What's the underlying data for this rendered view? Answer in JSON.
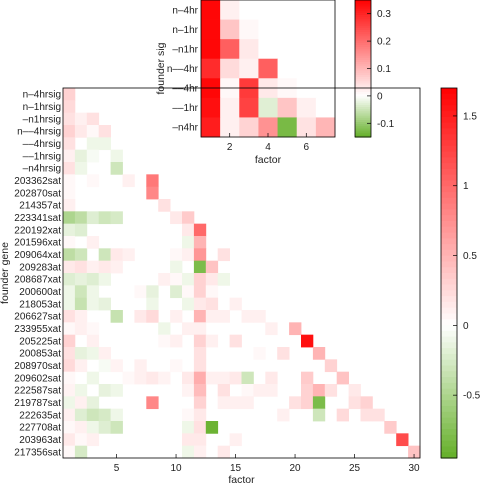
{
  "chart_data": [
    {
      "type": "heatmap",
      "title": "",
      "xlabel": "factor",
      "ylabel": "founder sig",
      "x_ticks": [
        2,
        4,
        6
      ],
      "rows": [
        "n–4hr",
        "n–1hr",
        "–n1hr",
        "n––4hr",
        "––4hr",
        "––1hr",
        "–n4hr"
      ],
      "matrix": [
        [
          0.34,
          0.02,
          0,
          0,
          0,
          0,
          0
        ],
        [
          0.34,
          0.08,
          0.01,
          0,
          0,
          0,
          0
        ],
        [
          0.34,
          0.22,
          0.03,
          0,
          0,
          0,
          0
        ],
        [
          0.29,
          0.05,
          0.02,
          0.22,
          0,
          0,
          0
        ],
        [
          0.34,
          0.01,
          0.27,
          0.03,
          0.01,
          0,
          0
        ],
        [
          0.33,
          0.02,
          0.26,
          -0.03,
          0.08,
          0.02,
          0
        ],
        [
          0.31,
          0.02,
          0.06,
          0.15,
          -0.13,
          0.04,
          0.1
        ]
      ],
      "colorbar": {
        "ticks": [
          0.3,
          0.2,
          0.1,
          0,
          -0.1
        ],
        "min": -0.15,
        "max": 0.35
      }
    },
    {
      "type": "heatmap",
      "title": "",
      "xlabel": "factor",
      "ylabel": "founder gene",
      "x_ticks": [
        5,
        10,
        15,
        20,
        25,
        30
      ],
      "rows": [
        "n–4hrsig",
        "n–1hrsig",
        "–n1hrsig",
        "n––4hrsig",
        "––4hrsig",
        "––1hrsig",
        "–n4hrsig",
        "203362sat",
        "202870sat",
        "214357at",
        "223341sat",
        "220192xat",
        "201596xat",
        "209064xat",
        "209283at",
        "208687xat",
        "200600at",
        "218053at",
        "206627sat",
        "233955xat",
        "205225at",
        "200853at",
        "208970sat",
        "209602sat",
        "222587sat",
        "219787sat",
        "222635at",
        "227708at",
        "203963at",
        "217356sat"
      ],
      "cells": [
        [
          1,
          1,
          0.3
        ],
        [
          1,
          2,
          0.25
        ],
        [
          1,
          3,
          0.2
        ],
        [
          1,
          4,
          0.3
        ],
        [
          1,
          5,
          0.2
        ],
        [
          1,
          6,
          0.1
        ],
        [
          1,
          7,
          0.2
        ],
        [
          1,
          8,
          0.05
        ],
        [
          1,
          9,
          0.05
        ],
        [
          1,
          10,
          0.1
        ],
        [
          1,
          11,
          -0.5
        ],
        [
          1,
          12,
          -0.15
        ],
        [
          1,
          13,
          0.05
        ],
        [
          1,
          14,
          -0.4
        ],
        [
          1,
          15,
          0.15
        ],
        [
          1,
          16,
          -0.2
        ],
        [
          1,
          17,
          -0.1
        ],
        [
          1,
          18,
          -0.1
        ],
        [
          1,
          19,
          0.2
        ],
        [
          1,
          20,
          0.05
        ],
        [
          1,
          21,
          0.3
        ],
        [
          1,
          22,
          0.2
        ],
        [
          1,
          23,
          0.25
        ],
        [
          1,
          24,
          0.05
        ],
        [
          1,
          25,
          0.08
        ],
        [
          1,
          26,
          -0.1
        ],
        [
          1,
          27,
          0.1
        ],
        [
          1,
          28,
          0.05
        ],
        [
          1,
          29,
          0.15
        ],
        [
          1,
          30,
          0.05
        ],
        [
          2,
          3,
          0.1
        ],
        [
          2,
          4,
          0.15
        ],
        [
          2,
          6,
          -0.15
        ],
        [
          2,
          7,
          -0.1
        ],
        [
          2,
          11,
          -0.4
        ],
        [
          2,
          12,
          -0.2
        ],
        [
          2,
          14,
          -0.3
        ],
        [
          2,
          15,
          0.2
        ],
        [
          2,
          16,
          -0.15
        ],
        [
          2,
          17,
          -0.3
        ],
        [
          2,
          18,
          -0.35
        ],
        [
          2,
          19,
          0.1
        ],
        [
          2,
          20,
          0.1
        ],
        [
          2,
          22,
          -0.15
        ],
        [
          2,
          23,
          0.1
        ],
        [
          2,
          25,
          -0.1
        ],
        [
          2,
          26,
          0.1
        ],
        [
          2,
          27,
          -0.2
        ],
        [
          2,
          28,
          0.1
        ],
        [
          2,
          29,
          0.05
        ],
        [
          2,
          30,
          -0.25
        ],
        [
          3,
          3,
          0.2
        ],
        [
          3,
          4,
          0.05
        ],
        [
          3,
          5,
          -0.1
        ],
        [
          3,
          6,
          -0.05
        ],
        [
          3,
          8,
          0.05
        ],
        [
          3,
          11,
          -0.2
        ],
        [
          3,
          13,
          0.1
        ],
        [
          3,
          15,
          0.1
        ],
        [
          3,
          16,
          -0.2
        ],
        [
          3,
          17,
          -0.1
        ],
        [
          3,
          18,
          -0.1
        ],
        [
          3,
          20,
          0.05
        ],
        [
          3,
          21,
          0.1
        ],
        [
          3,
          22,
          -0.1
        ],
        [
          3,
          24,
          -0.1
        ],
        [
          3,
          26,
          -0.15
        ],
        [
          3,
          27,
          -0.3
        ],
        [
          3,
          28,
          -0.1
        ],
        [
          3,
          29,
          0.1
        ],
        [
          4,
          4,
          0.2
        ],
        [
          4,
          5,
          -0.1
        ],
        [
          4,
          11,
          -0.3
        ],
        [
          4,
          14,
          -0.3
        ],
        [
          4,
          15,
          0.15
        ],
        [
          4,
          16,
          -0.1
        ],
        [
          4,
          18,
          -0.15
        ],
        [
          4,
          22,
          0.1
        ],
        [
          4,
          23,
          -0.05
        ],
        [
          4,
          25,
          -0.15
        ],
        [
          4,
          27,
          -0.25
        ],
        [
          4,
          28,
          -0.2
        ],
        [
          5,
          6,
          -0.1
        ],
        [
          5,
          7,
          -0.3
        ],
        [
          5,
          11,
          -0.25
        ],
        [
          5,
          14,
          0.15
        ],
        [
          5,
          15,
          0.1
        ],
        [
          5,
          19,
          -0.35
        ],
        [
          5,
          23,
          0.08
        ],
        [
          5,
          25,
          -0.1
        ],
        [
          5,
          27,
          -0.1
        ],
        [
          5,
          28,
          -0.3
        ],
        [
          6,
          8,
          0.1
        ],
        [
          6,
          14,
          0.1
        ],
        [
          6,
          24,
          0.05
        ],
        [
          7,
          17,
          0.05
        ],
        [
          7,
          19,
          0.15
        ],
        [
          7,
          23,
          0.1
        ],
        [
          7,
          24,
          0.1
        ],
        [
          8,
          8,
          0.9
        ],
        [
          8,
          9,
          0.8
        ],
        [
          8,
          17,
          -0.15
        ],
        [
          8,
          18,
          -0.1
        ],
        [
          8,
          19,
          0.25
        ],
        [
          8,
          24,
          0.15
        ],
        [
          8,
          26,
          0.8
        ],
        [
          9,
          10,
          0.2
        ],
        [
          9,
          16,
          0.1
        ],
        [
          9,
          20,
          -0.1
        ],
        [
          9,
          21,
          0.05
        ],
        [
          9,
          24,
          0.08
        ],
        [
          10,
          11,
          0.15
        ],
        [
          10,
          14,
          0.05
        ],
        [
          10,
          15,
          -0.1
        ],
        [
          10,
          16,
          0.05
        ],
        [
          10,
          17,
          -0.2
        ],
        [
          10,
          19,
          0.1
        ],
        [
          10,
          21,
          0.1
        ],
        [
          10,
          23,
          0.05
        ],
        [
          11,
          11,
          0.35
        ],
        [
          11,
          12,
          0.15
        ],
        [
          11,
          13,
          -0.1
        ],
        [
          11,
          14,
          0.1
        ],
        [
          11,
          16,
          -0.1
        ],
        [
          11,
          17,
          0.05
        ],
        [
          11,
          18,
          -0.1
        ],
        [
          11,
          20,
          0.1
        ],
        [
          11,
          24,
          0.15
        ],
        [
          11,
          25,
          0.08
        ],
        [
          11,
          27,
          0.05
        ],
        [
          11,
          28,
          -0.1
        ],
        [
          11,
          29,
          0.15
        ],
        [
          11,
          30,
          -0.1
        ],
        [
          12,
          12,
          1.0
        ],
        [
          12,
          13,
          0.5
        ],
        [
          12,
          14,
          0.7
        ],
        [
          12,
          15,
          -0.8
        ],
        [
          12,
          16,
          0.3
        ],
        [
          12,
          17,
          0.3
        ],
        [
          12,
          18,
          0.15
        ],
        [
          12,
          19,
          0.5
        ],
        [
          12,
          20,
          0.1
        ],
        [
          12,
          21,
          0.3
        ],
        [
          12,
          22,
          0.2
        ],
        [
          12,
          23,
          0.2
        ],
        [
          12,
          24,
          0.55
        ],
        [
          12,
          25,
          0.45
        ],
        [
          12,
          26,
          0.3
        ],
        [
          12,
          27,
          0.15
        ],
        [
          12,
          28,
          0.2
        ],
        [
          12,
          29,
          0.15
        ],
        [
          12,
          30,
          0.1
        ],
        [
          13,
          15,
          0.4
        ],
        [
          13,
          16,
          0.15
        ],
        [
          13,
          17,
          0.05
        ],
        [
          13,
          18,
          0.2
        ],
        [
          13,
          19,
          0.1
        ],
        [
          13,
          21,
          0.1
        ],
        [
          13,
          24,
          0.1
        ],
        [
          13,
          28,
          -0.9
        ],
        [
          14,
          14,
          0.2
        ],
        [
          14,
          16,
          -0.1
        ],
        [
          14,
          19,
          0.1
        ],
        [
          14,
          24,
          0.1
        ],
        [
          14,
          25,
          0.2
        ],
        [
          14,
          26,
          0.1
        ],
        [
          14,
          30,
          0.15
        ],
        [
          15,
          18,
          0.1
        ],
        [
          15,
          21,
          0.2
        ],
        [
          15,
          24,
          0.15
        ],
        [
          15,
          26,
          0.1
        ],
        [
          15,
          29,
          0.1
        ],
        [
          16,
          19,
          0.1
        ],
        [
          16,
          24,
          -0.3
        ],
        [
          16,
          25,
          0.05
        ],
        [
          16,
          26,
          0.1
        ],
        [
          17,
          19,
          0.1
        ],
        [
          17,
          22,
          0.05
        ],
        [
          17,
          25,
          0.1
        ],
        [
          18,
          20,
          0.1
        ],
        [
          18,
          24,
          0.15
        ],
        [
          18,
          25,
          0.1
        ],
        [
          19,
          22,
          0.2
        ],
        [
          19,
          27,
          0.1
        ],
        [
          20,
          20,
          0.5
        ],
        [
          20,
          26,
          0.2
        ],
        [
          21,
          21,
          1.6
        ],
        [
          21,
          24,
          0.35
        ],
        [
          21,
          25,
          0.3
        ],
        [
          21,
          26,
          0.3
        ],
        [
          22,
          22,
          0.5
        ],
        [
          22,
          25,
          0.5
        ],
        [
          22,
          26,
          -0.8
        ],
        [
          22,
          27,
          -0.3
        ],
        [
          23,
          23,
          0.3
        ],
        [
          23,
          25,
          0.2
        ],
        [
          24,
          24,
          0.4
        ],
        [
          24,
          27,
          0.25
        ],
        [
          25,
          25,
          0.15
        ],
        [
          25,
          26,
          0.2
        ],
        [
          26,
          26,
          0.3
        ],
        [
          26,
          27,
          0.2
        ],
        [
          27,
          27,
          0.2
        ],
        [
          28,
          28,
          0.35
        ],
        [
          29,
          29,
          1.2
        ],
        [
          30,
          30,
          0.4
        ]
      ],
      "colorbar": {
        "ticks": [
          1.5,
          1,
          0.5,
          0,
          -0.5
        ],
        "min": -0.95,
        "max": 1.7
      }
    }
  ]
}
